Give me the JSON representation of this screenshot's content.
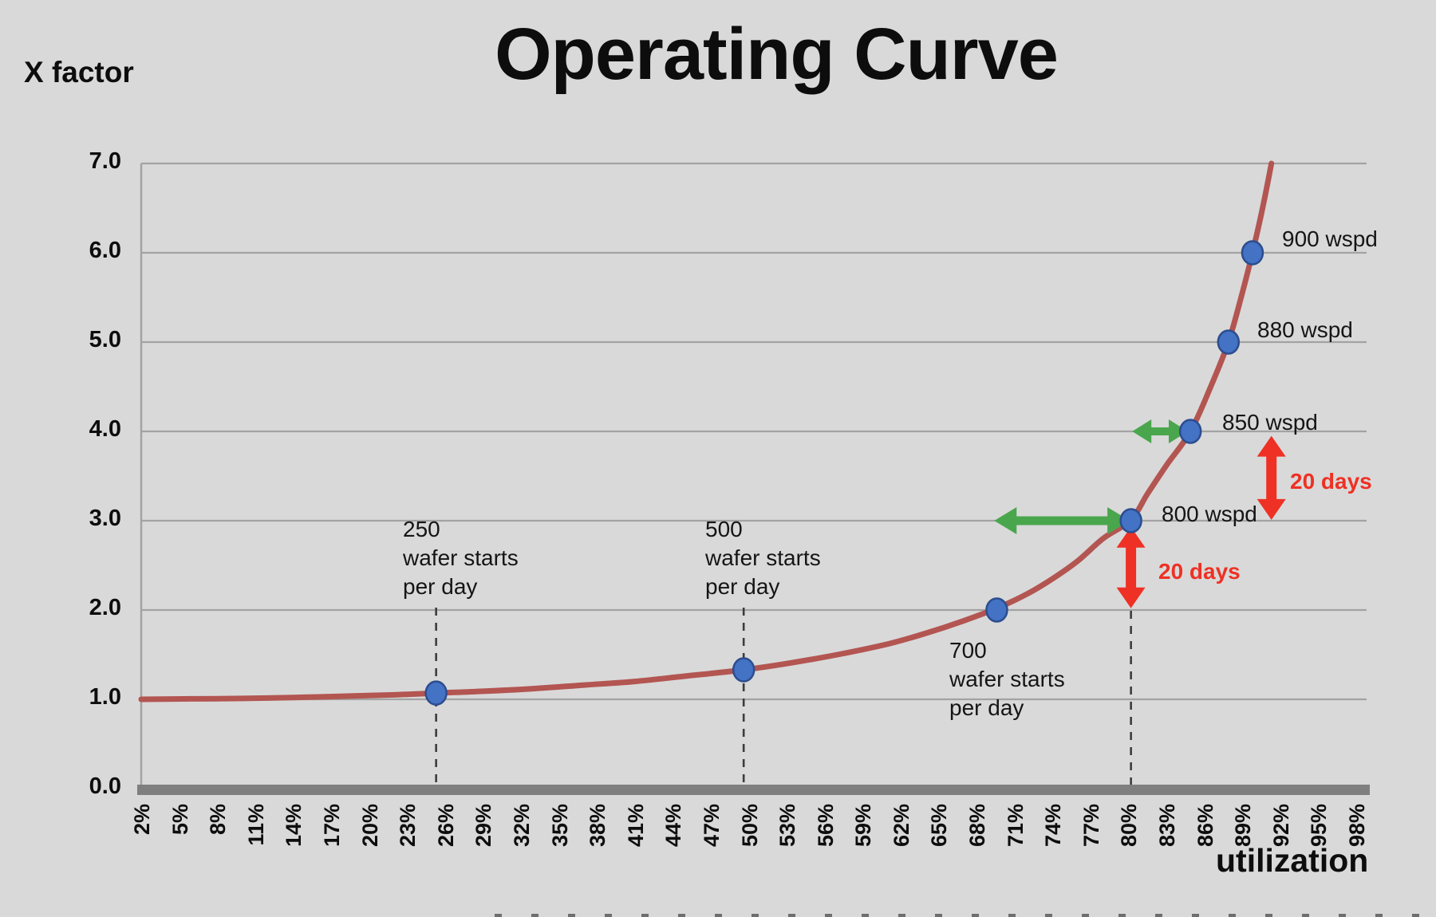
{
  "slide": {
    "background": "#d9d9d9"
  },
  "title": "Operating Curve",
  "axes": {
    "y_label": "X factor",
    "x_label": "utilization",
    "y_ticks": [
      "0.0",
      "1.0",
      "2.0",
      "3.0",
      "4.0",
      "5.0",
      "6.0",
      "7.0"
    ],
    "x_ticks": [
      "2%",
      "5%",
      "8%",
      "11%",
      "14%",
      "17%",
      "20%",
      "23%",
      "26%",
      "29%",
      "32%",
      "35%",
      "38%",
      "41%",
      "44%",
      "47%",
      "50%",
      "53%",
      "56%",
      "59%",
      "62%",
      "65%",
      "68%",
      "71%",
      "74%",
      "77%",
      "80%",
      "83%",
      "86%",
      "89%",
      "92%",
      "95%",
      "98%"
    ]
  },
  "chart_data": {
    "type": "line",
    "title": "Operating Curve",
    "xlabel": "utilization",
    "ylabel": "X factor",
    "xlim_percent": [
      2,
      98
    ],
    "x_tick_step_percent": 3,
    "ylim": [
      0,
      7
    ],
    "grid": "horizontal",
    "curve_color": "#b35551",
    "gridline_color": "#a3a3a3",
    "axis_bar_color": "#7f7f7f",
    "dashed_line_color": "#3d3d3d",
    "curve_points_u_vs_xfactor": [
      [
        2,
        1.0
      ],
      [
        6,
        1.005
      ],
      [
        10,
        1.01
      ],
      [
        14,
        1.02
      ],
      [
        18,
        1.035
      ],
      [
        22,
        1.05
      ],
      [
        25.3,
        1.07
      ],
      [
        29,
        1.09
      ],
      [
        33,
        1.12
      ],
      [
        37,
        1.16
      ],
      [
        41,
        1.2
      ],
      [
        45,
        1.26
      ],
      [
        49.6,
        1.33
      ],
      [
        53,
        1.4
      ],
      [
        57,
        1.5
      ],
      [
        61,
        1.62
      ],
      [
        64,
        1.74
      ],
      [
        67,
        1.88
      ],
      [
        69.6,
        2.02
      ],
      [
        72,
        2.18
      ],
      [
        74,
        2.35
      ],
      [
        76,
        2.55
      ],
      [
        78,
        2.8
      ],
      [
        80.2,
        3.01
      ],
      [
        81.5,
        3.3
      ],
      [
        83,
        3.62
      ],
      [
        84.9,
        4.0
      ],
      [
        86.5,
        4.5
      ],
      [
        87.9,
        5.0
      ],
      [
        88.9,
        5.5
      ],
      [
        89.8,
        6.0
      ],
      [
        90.6,
        6.5
      ],
      [
        91.3,
        7.0
      ]
    ],
    "markers": [
      {
        "id": "m250",
        "u": 25.3,
        "x_factor": 1.07,
        "label_lines": [
          "250",
          "wafer starts",
          "per day"
        ],
        "dashed_drop_line": true
      },
      {
        "id": "m500",
        "u": 49.6,
        "x_factor": 1.33,
        "label_lines": [
          "500",
          "wafer starts",
          "per day"
        ],
        "dashed_drop_line": true
      },
      {
        "id": "m700",
        "u": 69.6,
        "x_factor": 2.0,
        "label_lines": [
          "700",
          "wafer starts",
          "per day"
        ],
        "dashed_drop_line": false
      },
      {
        "id": "m800",
        "u": 80.2,
        "x_factor": 3.0,
        "label_lines": [
          "800 wspd"
        ],
        "dashed_drop_line": true
      },
      {
        "id": "m850",
        "u": 84.9,
        "x_factor": 4.0,
        "label_lines": [
          "850 wspd"
        ],
        "dashed_drop_line": false
      },
      {
        "id": "m880",
        "u": 87.9,
        "x_factor": 5.0,
        "label_lines": [
          "880 wspd"
        ],
        "dashed_drop_line": false
      },
      {
        "id": "m900",
        "u": 89.8,
        "x_factor": 6.0,
        "label_lines": [
          "900 wspd"
        ],
        "dashed_drop_line": false
      }
    ],
    "arrows": [
      {
        "id": "green-800",
        "color": "#4aa64d",
        "orientation": "horizontal",
        "at_x_factor": 3.0,
        "from_u": 69.4,
        "to_u": 80.1,
        "double_headed": true,
        "label": ""
      },
      {
        "id": "green-850",
        "color": "#4aa64d",
        "orientation": "horizontal",
        "at_x_factor": 4.0,
        "from_u": 80.3,
        "to_u": 84.7,
        "double_headed": true,
        "label": ""
      },
      {
        "id": "red-800",
        "color": "#ee3124",
        "orientation": "vertical",
        "at_u": 80.2,
        "from_x_factor": 2.93,
        "to_x_factor": 2.02,
        "double_headed": true,
        "label": "20 days"
      },
      {
        "id": "red-850",
        "color": "#ee3124",
        "orientation": "vertical",
        "at_u": 91.3,
        "from_x_factor": 3.95,
        "to_x_factor": 3.01,
        "double_headed": true,
        "label": "20 days"
      }
    ],
    "point_style": {
      "fill": "#4472c4",
      "stroke": "#2c4d8e"
    }
  }
}
